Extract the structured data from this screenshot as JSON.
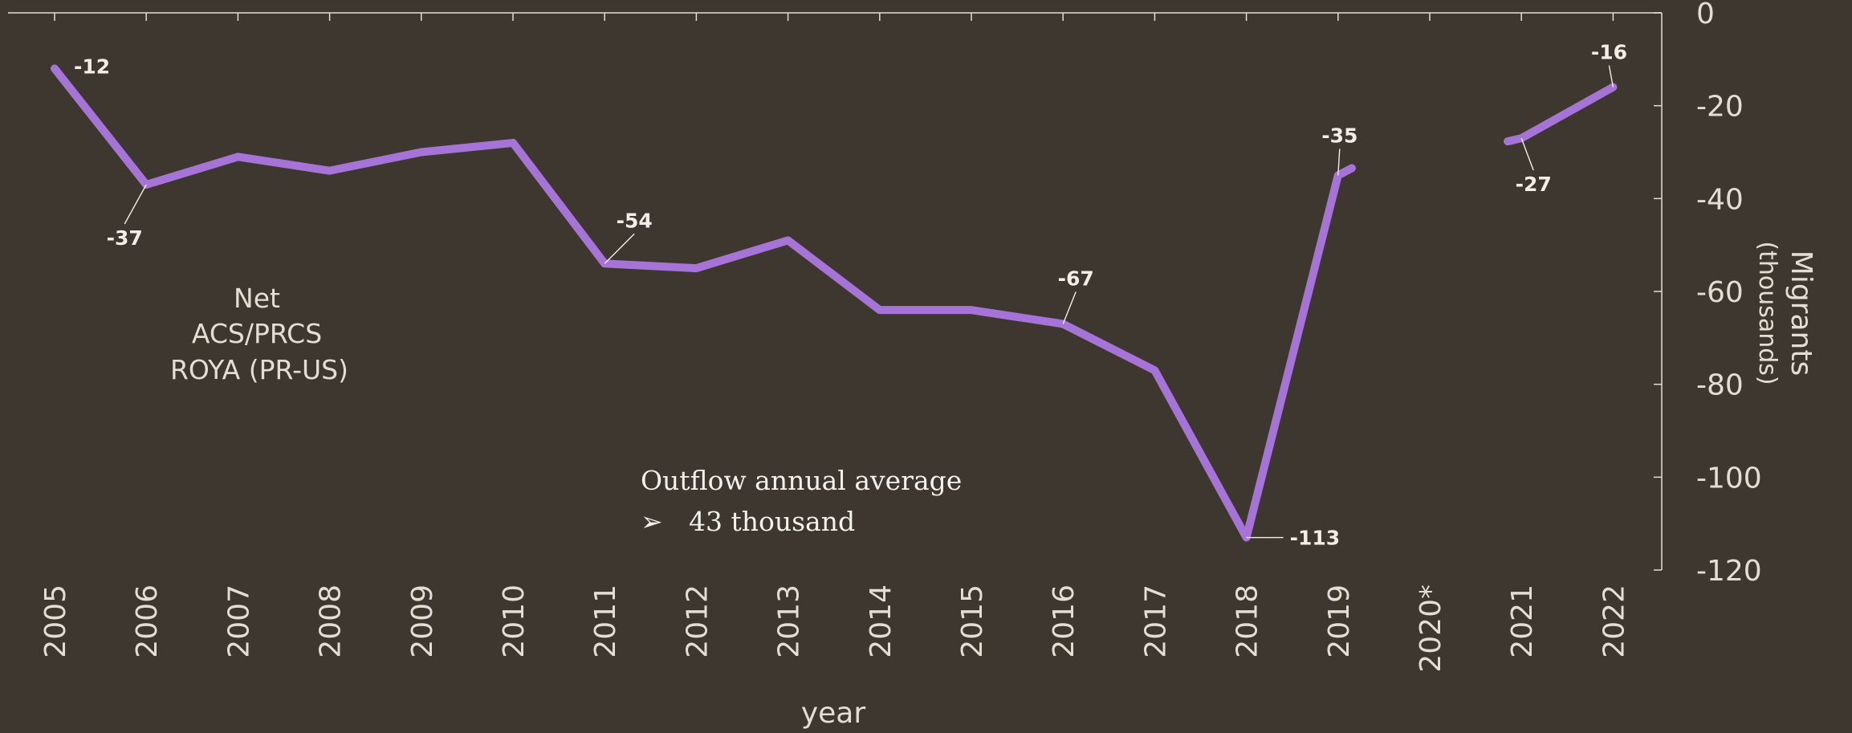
{
  "chart_data": {
    "type": "line",
    "x": [
      "2005",
      "2006",
      "2007",
      "2008",
      "2009",
      "2010",
      "2011",
      "2012",
      "2013",
      "2014",
      "2015",
      "2016",
      "2017",
      "2018",
      "2019",
      "2020*",
      "2021",
      "2022"
    ],
    "series": [
      {
        "values": [
          -12,
          -37,
          -31,
          -34,
          -30,
          -28,
          -54,
          -55,
          -49,
          -64,
          -64,
          -67,
          -77,
          -113,
          -35,
          null,
          -27,
          -16
        ],
        "color": "#a674d6"
      }
    ],
    "series_label_lines": [
      "Net",
      "ACS/PRCS",
      "ROYA (PR-US)"
    ],
    "data_labels": [
      {
        "year": "2005",
        "text": "-12"
      },
      {
        "year": "2006",
        "text": "-37"
      },
      {
        "year": "2011",
        "text": "-54"
      },
      {
        "year": "2016",
        "text": "-67"
      },
      {
        "year": "2018",
        "text": "-113",
        "color": "#1fae5a"
      },
      {
        "year": "2019",
        "text": "-35"
      },
      {
        "year": "2021",
        "text": "-27"
      },
      {
        "year": "2022",
        "text": "-16"
      }
    ],
    "xlabel": "year",
    "ylabel": "Migrants",
    "ylabel_sub": "(thousands)",
    "ylim": [
      -120,
      0
    ],
    "yticks": [
      0,
      -20,
      -40,
      -60,
      -80,
      -100,
      -120
    ],
    "y_axis_position": "right",
    "grid": false,
    "annotation": {
      "line1": "Outflow annual average",
      "bullet": "➢",
      "line2": "43 thousand"
    },
    "colors": {
      "background": "#3d3730",
      "axis": "#e4ddd3",
      "line": "#a674d6",
      "highlight": "#1fae5a"
    }
  }
}
